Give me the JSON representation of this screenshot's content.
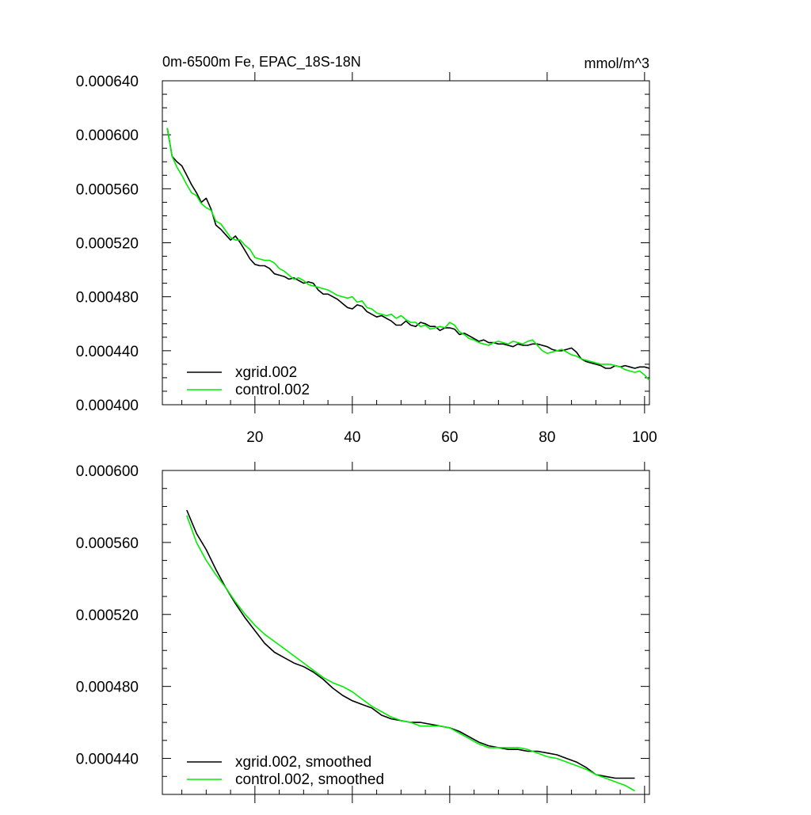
{
  "chart_data": [
    {
      "type": "line",
      "title": "0m-6500m Fe, EPAC_18S-18N",
      "units": "mmol/m^3",
      "xlim": [
        1,
        101
      ],
      "ylim": [
        0.0004,
        0.00064
      ],
      "xticks": [
        20,
        40,
        60,
        80,
        100
      ],
      "yticks": [
        0.0004,
        0.00044,
        0.00048,
        0.00052,
        0.00056,
        0.0006,
        0.00064
      ],
      "ytick_labels": [
        "0.000400",
        "0.000440",
        "0.000480",
        "0.000520",
        "0.000560",
        "0.000600",
        "0.000640"
      ],
      "legend": "bottom-left",
      "series": [
        {
          "name": "xgrid.002",
          "color": "#000000",
          "x": [
            2,
            3,
            4,
            5,
            6,
            7,
            8,
            9,
            10,
            11,
            12,
            13,
            14,
            15,
            16,
            17,
            18,
            19,
            20,
            21,
            22,
            23,
            24,
            25,
            26,
            27,
            28,
            29,
            30,
            31,
            32,
            33,
            34,
            35,
            36,
            37,
            38,
            39,
            40,
            41,
            42,
            43,
            44,
            45,
            46,
            47,
            48,
            49,
            50,
            51,
            52,
            53,
            54,
            55,
            56,
            57,
            58,
            59,
            60,
            61,
            62,
            63,
            64,
            65,
            66,
            67,
            68,
            69,
            70,
            71,
            72,
            73,
            74,
            75,
            76,
            77,
            78,
            79,
            80,
            81,
            82,
            83,
            84,
            85,
            86,
            87,
            88,
            89,
            90,
            91,
            92,
            93,
            94,
            95,
            96,
            97,
            98,
            99,
            100,
            101
          ],
          "values": [
            0.000605,
            0.000584,
            0.00058,
            0.000577,
            0.00057,
            0.000563,
            0.000557,
            0.00055,
            0.000553,
            0.000545,
            0.000533,
            0.00053,
            0.000526,
            0.000522,
            0.000525,
            0.00052,
            0.000514,
            0.000508,
            0.000504,
            0.000503,
            0.000503,
            0.000501,
            0.000497,
            0.000496,
            0.000495,
            0.000493,
            0.000494,
            0.000492,
            0.00049,
            0.000491,
            0.00049,
            0.000485,
            0.000482,
            0.000482,
            0.00048,
            0.000478,
            0.000475,
            0.000472,
            0.000471,
            0.000474,
            0.000473,
            0.000469,
            0.000467,
            0.000465,
            0.000466,
            0.000464,
            0.000462,
            0.000459,
            0.000459,
            0.000462,
            0.000459,
            0.000458,
            0.000461,
            0.00046,
            0.000458,
            0.000458,
            0.000455,
            0.000457,
            0.000457,
            0.000456,
            0.000452,
            0.000453,
            0.000451,
            0.000449,
            0.000447,
            0.000448,
            0.000446,
            0.000446,
            0.000445,
            0.000445,
            0.000444,
            0.000443,
            0.000445,
            0.000444,
            0.000444,
            0.000445,
            0.000445,
            0.000444,
            0.000443,
            0.000441,
            0.00044,
            0.00044,
            0.000441,
            0.000442,
            0.000439,
            0.000434,
            0.000432,
            0.000431,
            0.00043,
            0.000429,
            0.000427,
            0.000427,
            0.000429,
            0.000428,
            0.000429,
            0.000428,
            0.000427,
            0.000428,
            0.000428,
            0.000427
          ]
        },
        {
          "name": "control.002",
          "color": "#00ee00",
          "x": [
            2,
            3,
            4,
            5,
            6,
            7,
            8,
            9,
            10,
            11,
            12,
            13,
            14,
            15,
            16,
            17,
            18,
            19,
            20,
            21,
            22,
            23,
            24,
            25,
            26,
            27,
            28,
            29,
            30,
            31,
            32,
            33,
            34,
            35,
            36,
            37,
            38,
            39,
            40,
            41,
            42,
            43,
            44,
            45,
            46,
            47,
            48,
            49,
            50,
            51,
            52,
            53,
            54,
            55,
            56,
            57,
            58,
            59,
            60,
            61,
            62,
            63,
            64,
            65,
            66,
            67,
            68,
            69,
            70,
            71,
            72,
            73,
            74,
            75,
            76,
            77,
            78,
            79,
            80,
            81,
            82,
            83,
            84,
            85,
            86,
            87,
            88,
            89,
            90,
            91,
            92,
            93,
            94,
            95,
            96,
            97,
            98,
            99,
            100,
            101
          ],
          "values": [
            0.000605,
            0.000584,
            0.000576,
            0.00057,
            0.000563,
            0.000557,
            0.000555,
            0.000549,
            0.000546,
            0.000544,
            0.000536,
            0.000534,
            0.000529,
            0.000524,
            0.000522,
            0.000522,
            0.000518,
            0.000515,
            0.000509,
            0.000508,
            0.000507,
            0.000507,
            0.000505,
            0.000501,
            0.000499,
            0.000496,
            0.000493,
            0.000494,
            0.000492,
            0.000489,
            0.000488,
            0.000487,
            0.000486,
            0.000485,
            0.000483,
            0.000481,
            0.00048,
            0.000479,
            0.00048,
            0.000476,
            0.000477,
            0.000472,
            0.000471,
            0.000468,
            0.000467,
            0.000466,
            0.000467,
            0.000464,
            0.000466,
            0.000463,
            0.000461,
            0.000461,
            0.000458,
            0.000459,
            0.000456,
            0.000457,
            0.000458,
            0.000457,
            0.000461,
            0.000459,
            0.000454,
            0.000452,
            0.000449,
            0.000448,
            0.000446,
            0.000445,
            0.000444,
            0.000446,
            0.000447,
            0.000446,
            0.000445,
            0.000447,
            0.000446,
            0.000445,
            0.000447,
            0.000448,
            0.000444,
            0.00044,
            0.000438,
            0.000439,
            0.00044,
            0.000441,
            0.000439,
            0.000437,
            0.000436,
            0.000434,
            0.000433,
            0.000432,
            0.000431,
            0.00043,
            0.00043,
            0.00043,
            0.000429,
            0.000428,
            0.000426,
            0.000425,
            0.000424,
            0.000425,
            0.000422,
            0.000418
          ]
        }
      ]
    },
    {
      "type": "line",
      "xlim": [
        1,
        101
      ],
      "ylim": [
        0.00042,
        0.0006
      ],
      "xticks": [
        20,
        40,
        60,
        80,
        100
      ],
      "yticks": [
        0.00044,
        0.00048,
        0.00052,
        0.00056,
        0.0006
      ],
      "ytick_labels": [
        "0.000440",
        "0.000480",
        "0.000520",
        "0.000560",
        "0.000600"
      ],
      "legend": "bottom-left",
      "series": [
        {
          "name": "xgrid.002, smoothed",
          "color": "#000000",
          "x": [
            6,
            8,
            10,
            12,
            14,
            16,
            18,
            20,
            22,
            24,
            26,
            28,
            30,
            32,
            34,
            36,
            38,
            40,
            42,
            44,
            46,
            48,
            50,
            52,
            54,
            56,
            58,
            60,
            62,
            64,
            66,
            68,
            70,
            72,
            74,
            76,
            78,
            80,
            82,
            84,
            86,
            88,
            90,
            92,
            94,
            96,
            98
          ],
          "values": [
            0.000578,
            0.000565,
            0.000556,
            0.000545,
            0.000535,
            0.000526,
            0.000518,
            0.000511,
            0.000504,
            0.000499,
            0.000496,
            0.000493,
            0.000491,
            0.000488,
            0.000484,
            0.000479,
            0.000475,
            0.000472,
            0.00047,
            0.000468,
            0.000464,
            0.000462,
            0.000461,
            0.00046,
            0.00046,
            0.000459,
            0.000458,
            0.000457,
            0.000455,
            0.000452,
            0.000449,
            0.000447,
            0.000446,
            0.000445,
            0.000445,
            0.000444,
            0.000444,
            0.000443,
            0.000442,
            0.00044,
            0.000438,
            0.000435,
            0.000431,
            0.00043,
            0.000429,
            0.000429,
            0.000429
          ]
        },
        {
          "name": "control.002, smoothed",
          "color": "#00ee00",
          "x": [
            6,
            8,
            10,
            12,
            14,
            16,
            18,
            20,
            22,
            24,
            26,
            28,
            30,
            32,
            34,
            36,
            38,
            40,
            42,
            44,
            46,
            48,
            50,
            52,
            54,
            56,
            58,
            60,
            62,
            64,
            66,
            68,
            70,
            72,
            74,
            76,
            78,
            80,
            82,
            84,
            86,
            88,
            90,
            92,
            94,
            96,
            98
          ],
          "values": [
            0.000575,
            0.00056,
            0.00055,
            0.000542,
            0.000535,
            0.000527,
            0.00052,
            0.000514,
            0.000509,
            0.000505,
            0.000501,
            0.000497,
            0.000493,
            0.000489,
            0.000485,
            0.000482,
            0.00048,
            0.000477,
            0.000473,
            0.000469,
            0.000466,
            0.000463,
            0.000461,
            0.00046,
            0.000458,
            0.000458,
            0.000458,
            0.000457,
            0.000454,
            0.000451,
            0.000448,
            0.000446,
            0.000446,
            0.000446,
            0.000446,
            0.000445,
            0.000443,
            0.000441,
            0.00044,
            0.000438,
            0.000436,
            0.000434,
            0.000431,
            0.000429,
            0.000427,
            0.000425,
            0.000422
          ]
        }
      ]
    }
  ]
}
